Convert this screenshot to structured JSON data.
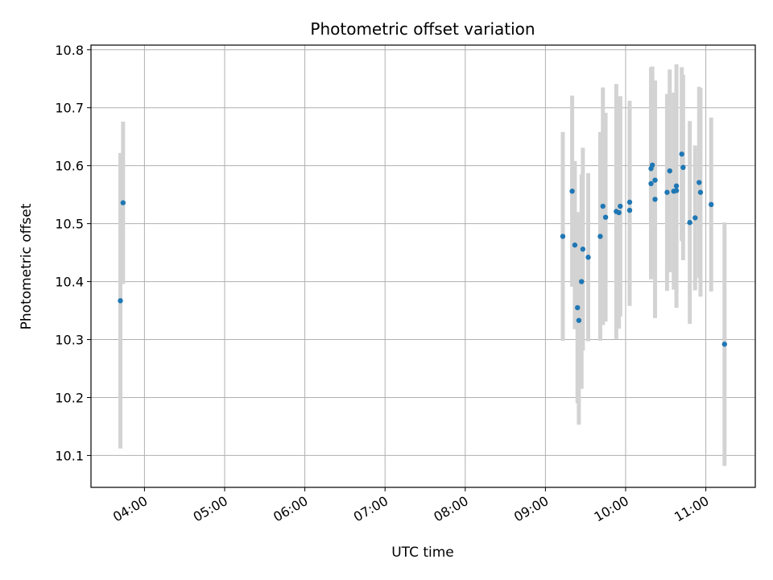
{
  "chart_data": {
    "type": "scatter",
    "title": "Photometric offset variation",
    "xlabel": "UTC time",
    "ylabel": "Photometric offset",
    "x_tick_labels": [
      "04:00",
      "05:00",
      "06:00",
      "07:00",
      "08:00",
      "09:00",
      "10:00",
      "11:00"
    ],
    "y_tick_labels": [
      "10.1",
      "10.2",
      "10.3",
      "10.4",
      "10.5",
      "10.6",
      "10.7",
      "10.8"
    ],
    "xlim": [
      "03:20",
      "11:37"
    ],
    "ylim": [
      10.045,
      10.808
    ],
    "grid": true,
    "colors": {
      "marker": "#1f77b4",
      "errorbar": "#d3d3d3",
      "grid": "#b0b0b0"
    },
    "series": [
      {
        "points": [
          {
            "x": "03:42",
            "y": 10.367,
            "err": 0.255
          },
          {
            "x": "03:44",
            "y": 10.536,
            "err": 0.14
          },
          {
            "x": "09:13",
            "y": 10.478,
            "err": 0.18
          },
          {
            "x": "09:20",
            "y": 10.556,
            "err": 0.165
          },
          {
            "x": "09:22",
            "y": 10.463,
            "err": 0.145
          },
          {
            "x": "09:24",
            "y": 10.355,
            "err": 0.165
          },
          {
            "x": "09:25",
            "y": 10.333,
            "err": 0.18
          },
          {
            "x": "09:27",
            "y": 10.4,
            "err": 0.185
          },
          {
            "x": "09:28",
            "y": 10.456,
            "err": 0.175
          },
          {
            "x": "09:32",
            "y": 10.442,
            "err": 0.145
          },
          {
            "x": "09:41",
            "y": 10.478,
            "err": 0.18
          },
          {
            "x": "09:43",
            "y": 10.53,
            "err": 0.205
          },
          {
            "x": "09:45",
            "y": 10.511,
            "err": 0.18
          },
          {
            "x": "09:53",
            "y": 10.521,
            "err": 0.22
          },
          {
            "x": "09:55",
            "y": 10.519,
            "err": 0.2
          },
          {
            "x": "09:56",
            "y": 10.53,
            "err": 0.19
          },
          {
            "x": "10:03",
            "y": 10.523,
            "err": 0.165
          },
          {
            "x": "10:03",
            "y": 10.537,
            "err": 0.175
          },
          {
            "x": "10:19",
            "y": 10.569,
            "err": 0.165
          },
          {
            "x": "10:19",
            "y": 10.595,
            "err": 0.175
          },
          {
            "x": "10:20",
            "y": 10.601,
            "err": 0.17
          },
          {
            "x": "10:22",
            "y": 10.575,
            "err": 0.17
          },
          {
            "x": "10:22",
            "y": 10.542,
            "err": 0.205
          },
          {
            "x": "10:31",
            "y": 10.554,
            "err": 0.17
          },
          {
            "x": "10:33",
            "y": 10.591,
            "err": 0.175
          },
          {
            "x": "10:36",
            "y": 10.556,
            "err": 0.17
          },
          {
            "x": "10:38",
            "y": 10.557,
            "err": 0.18
          },
          {
            "x": "10:38",
            "y": 10.565,
            "err": 0.21
          },
          {
            "x": "10:42",
            "y": 10.62,
            "err": 0.15
          },
          {
            "x": "10:43",
            "y": 10.597,
            "err": 0.16
          },
          {
            "x": "10:48",
            "y": 10.502,
            "err": 0.175
          },
          {
            "x": "10:52",
            "y": 10.51,
            "err": 0.125
          },
          {
            "x": "10:55",
            "y": 10.571,
            "err": 0.165
          },
          {
            "x": "10:56",
            "y": 10.554,
            "err": 0.18
          },
          {
            "x": "11:04",
            "y": 10.533,
            "err": 0.15
          },
          {
            "x": "11:14",
            "y": 10.292,
            "err": 0.21
          }
        ]
      }
    ]
  }
}
